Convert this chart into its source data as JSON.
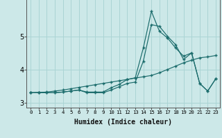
{
  "xlabel": "Humidex (Indice chaleur)",
  "bg_color": "#cce8e8",
  "line_color": "#1a6b6b",
  "x": [
    0,
    1,
    2,
    3,
    4,
    5,
    6,
    7,
    8,
    9,
    10,
    11,
    12,
    13,
    14,
    15,
    16,
    17,
    18,
    19,
    20,
    21,
    22,
    23
  ],
  "line1": [
    3.3,
    3.3,
    3.3,
    3.3,
    3.32,
    3.35,
    3.38,
    3.32,
    3.32,
    3.32,
    3.45,
    3.55,
    3.7,
    3.75,
    4.65,
    5.75,
    5.15,
    4.95,
    4.65,
    4.4,
    4.5,
    3.58,
    3.35,
    3.72
  ],
  "line2": [
    3.3,
    3.3,
    3.3,
    3.3,
    3.32,
    3.35,
    3.38,
    3.3,
    3.3,
    3.3,
    3.38,
    3.48,
    3.58,
    3.62,
    4.25,
    5.35,
    5.3,
    5.0,
    4.75,
    4.3,
    4.5,
    3.58,
    3.35,
    3.72
  ],
  "line3": [
    3.3,
    3.31,
    3.32,
    3.35,
    3.38,
    3.42,
    3.46,
    3.5,
    3.54,
    3.58,
    3.62,
    3.66,
    3.7,
    3.74,
    3.78,
    3.82,
    3.9,
    4.0,
    4.1,
    4.2,
    4.28,
    4.35,
    4.38,
    4.42
  ],
  "ylim": [
    2.85,
    6.3
  ],
  "yticks": [
    3,
    4,
    5
  ],
  "grid_color": "#aad4d4",
  "xlabel_fontsize": 7
}
